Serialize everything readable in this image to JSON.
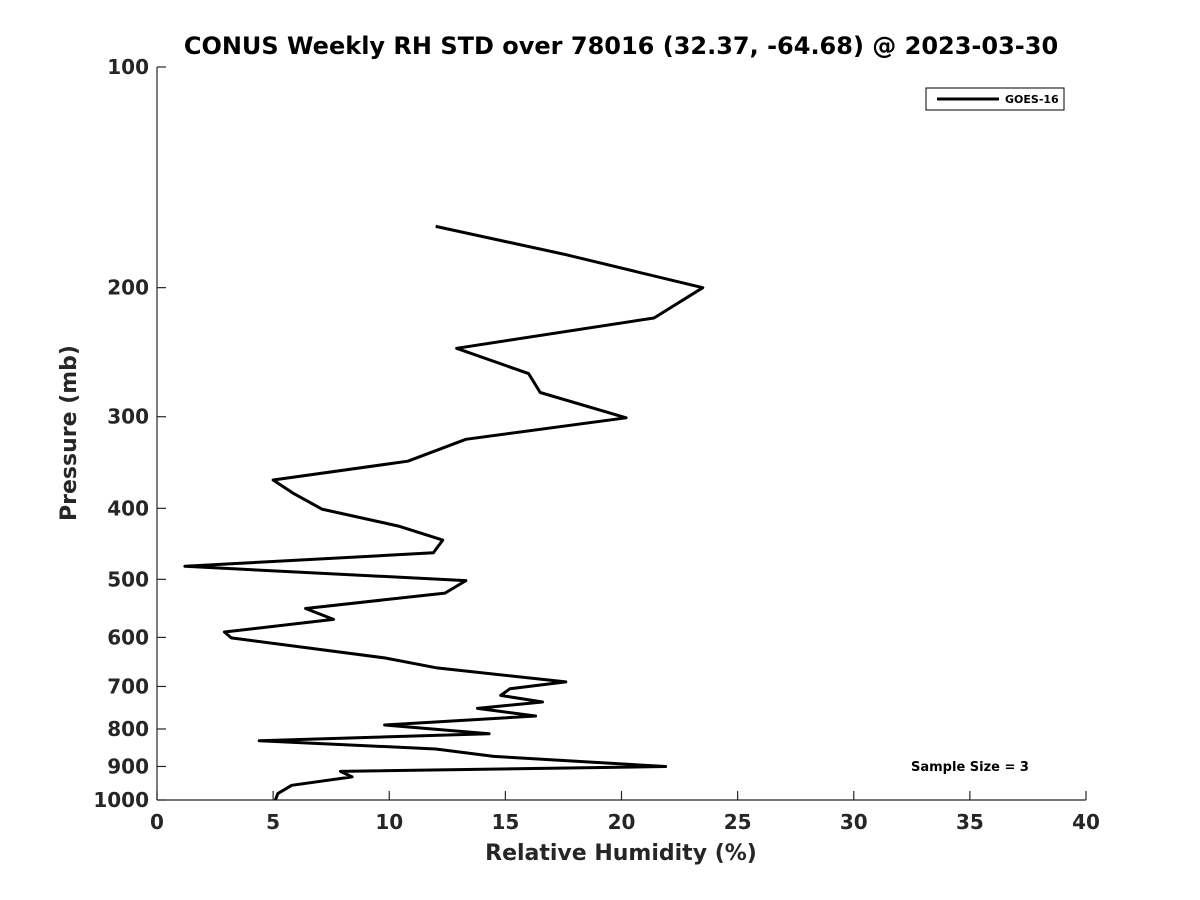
{
  "chart_data": {
    "type": "line",
    "title": "CONUS Weekly RH STD over 78016 (32.37, -64.68) @ 2023-03-30",
    "xlabel": "Relative Humidity (%)",
    "ylabel": "Pressure (mb)",
    "xlim": [
      0,
      40
    ],
    "ylim": [
      100,
      1000
    ],
    "y_scale": "log",
    "y_reversed": true,
    "xticks": [
      0,
      5,
      10,
      15,
      20,
      25,
      30,
      35,
      40
    ],
    "yticks": [
      100,
      200,
      300,
      400,
      500,
      600,
      700,
      800,
      900,
      1000
    ],
    "grid": false,
    "legend_position": "top-right",
    "annotation": "Sample Size = 3",
    "series": [
      {
        "name": "GOES-16",
        "color": "#000000",
        "points": [
          [
            12.0,
            165
          ],
          [
            17.5,
            180
          ],
          [
            23.5,
            200
          ],
          [
            21.4,
            220
          ],
          [
            12.9,
            242
          ],
          [
            16.0,
            262
          ],
          [
            16.5,
            278
          ],
          [
            20.2,
            301
          ],
          [
            13.3,
            322
          ],
          [
            10.8,
            345
          ],
          [
            5.0,
            366
          ],
          [
            5.9,
            382
          ],
          [
            7.1,
            401
          ],
          [
            10.4,
            423
          ],
          [
            12.3,
            442
          ],
          [
            11.9,
            460
          ],
          [
            1.2,
            480
          ],
          [
            13.3,
            502
          ],
          [
            12.4,
            522
          ],
          [
            6.4,
            548
          ],
          [
            7.6,
            567
          ],
          [
            2.9,
            590
          ],
          [
            3.2,
            601
          ],
          [
            9.8,
            640
          ],
          [
            12.0,
            660
          ],
          [
            17.6,
            690
          ],
          [
            15.2,
            705
          ],
          [
            14.8,
            720
          ],
          [
            16.6,
            735
          ],
          [
            13.8,
            750
          ],
          [
            16.3,
            768
          ],
          [
            9.8,
            790
          ],
          [
            14.3,
            812
          ],
          [
            4.4,
            830
          ],
          [
            12.0,
            852
          ],
          [
            14.5,
            872
          ],
          [
            21.9,
            900
          ],
          [
            7.9,
            914
          ],
          [
            8.4,
            930
          ],
          [
            5.8,
            955
          ],
          [
            5.2,
            980
          ],
          [
            5.1,
            1000
          ]
        ]
      }
    ]
  }
}
